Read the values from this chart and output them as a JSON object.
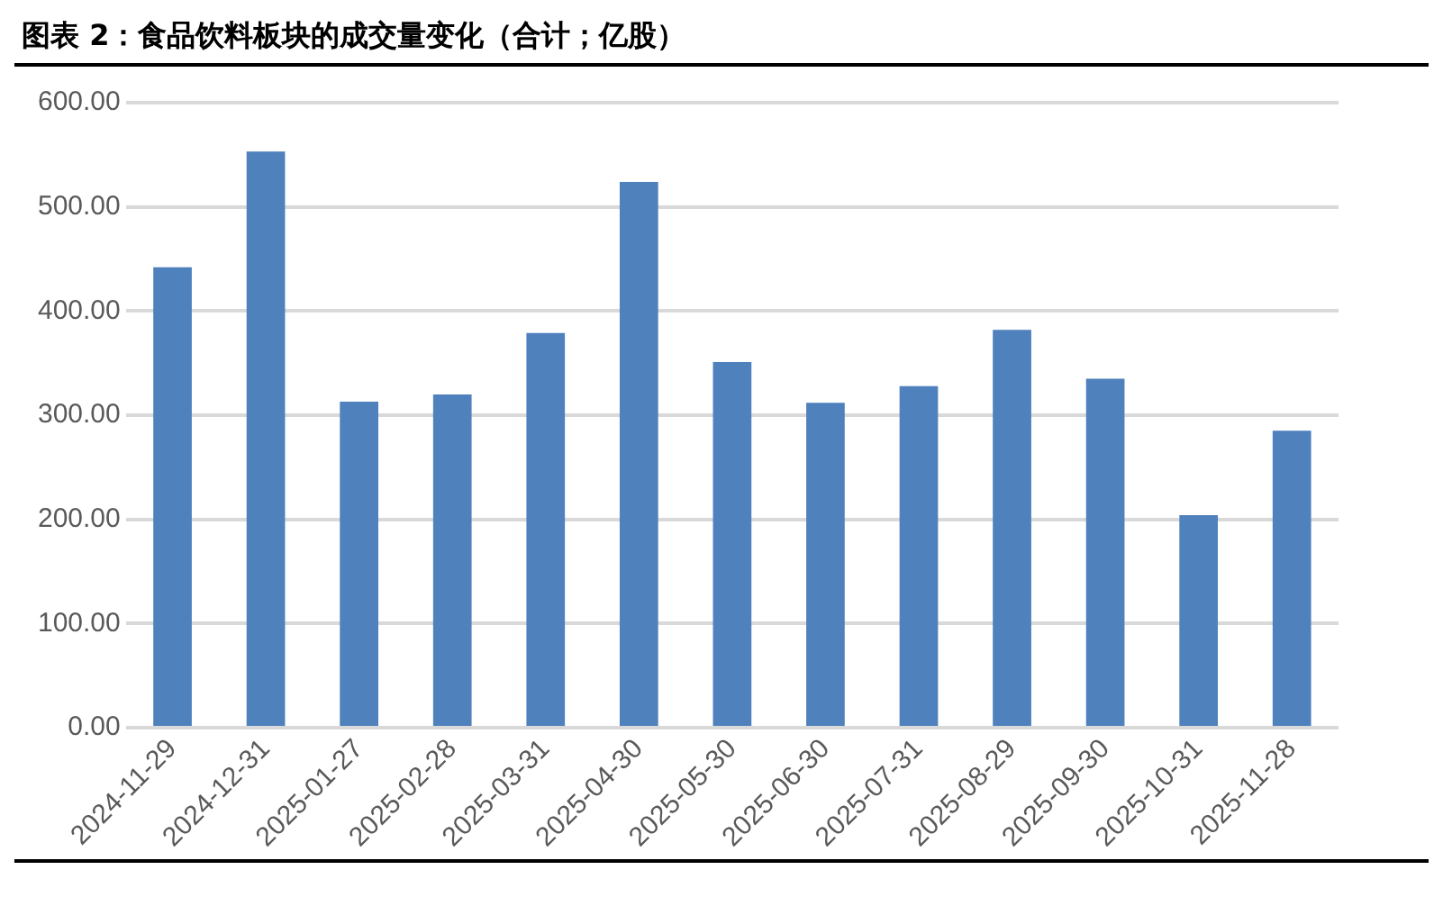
{
  "chart_data": {
    "type": "bar",
    "title": "图表 2：食品饮料板块的成交量变化（合计；亿股）",
    "categories": [
      "2024-11-29",
      "2024-12-31",
      "2025-01-27",
      "2025-02-28",
      "2025-03-31",
      "2025-04-30",
      "2025-05-30",
      "2025-06-30",
      "2025-07-31",
      "2025-08-29",
      "2025-09-30",
      "2025-10-31",
      "2025-11-28"
    ],
    "values": [
      442,
      553,
      313,
      320,
      379,
      524,
      351,
      312,
      328,
      382,
      335,
      204,
      285
    ],
    "color": "#4f81bd",
    "ylim": [
      0,
      600
    ],
    "yticks": [
      {
        "value": 0,
        "label": "0.00"
      },
      {
        "value": 100,
        "label": "100.00"
      },
      {
        "value": 200,
        "label": "200.00"
      },
      {
        "value": 300,
        "label": "300.00"
      },
      {
        "value": 400,
        "label": "400.00"
      },
      {
        "value": 500,
        "label": "500.00"
      },
      {
        "value": 600,
        "label": "600.00"
      }
    ],
    "grid": "y"
  }
}
